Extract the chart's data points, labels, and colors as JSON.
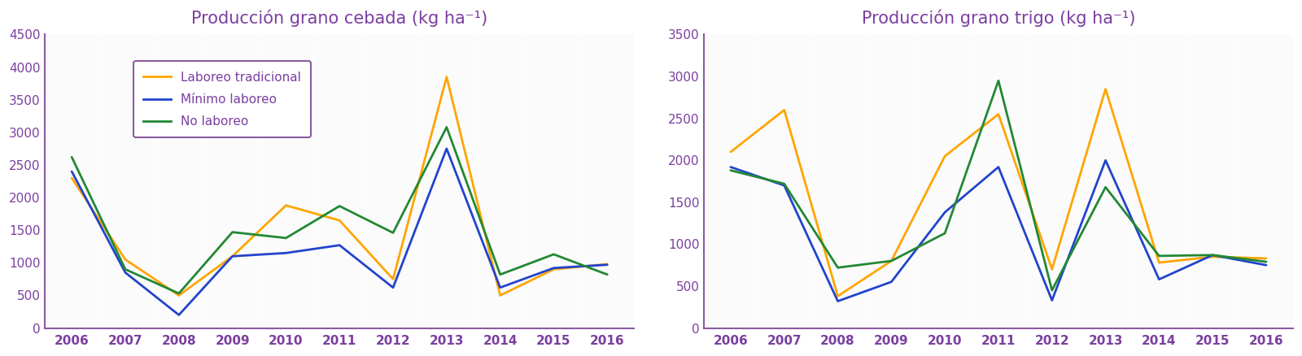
{
  "years": [
    2006,
    2007,
    2008,
    2009,
    2010,
    2011,
    2012,
    2013,
    2014,
    2015,
    2016
  ],
  "cebada": {
    "title": "Producción grano cebada (kg ha⁻¹)",
    "laboreo_tradicional": [
      2300,
      1050,
      500,
      1100,
      1880,
      1650,
      750,
      3850,
      500,
      900,
      980
    ],
    "minimo_laboreo": [
      2400,
      850,
      200,
      1100,
      1150,
      1270,
      620,
      2750,
      620,
      920,
      970
    ],
    "no_laboreo": [
      2620,
      900,
      530,
      1470,
      1380,
      1870,
      1460,
      3080,
      820,
      1130,
      820
    ],
    "ylim": [
      0,
      4500
    ],
    "yticks": [
      0,
      500,
      1000,
      1500,
      2000,
      2500,
      3000,
      3500,
      4000,
      4500
    ]
  },
  "trigo": {
    "title": "Producción grano trigo (kg ha⁻¹)",
    "laboreo_tradicional": [
      2100,
      2600,
      380,
      800,
      2050,
      2550,
      700,
      2850,
      780,
      850,
      830
    ],
    "minimo_laboreo": [
      1920,
      1700,
      320,
      550,
      1380,
      1920,
      330,
      2000,
      580,
      870,
      750
    ],
    "no_laboreo": [
      1880,
      1720,
      720,
      800,
      1130,
      2950,
      450,
      1680,
      860,
      870,
      790
    ],
    "ylim": [
      0,
      3500
    ],
    "yticks": [
      0,
      500,
      1000,
      1500,
      2000,
      2500,
      3000,
      3500
    ]
  },
  "colors": {
    "laboreo_tradicional": "#FFA500",
    "minimo_laboreo": "#2244CC",
    "no_laboreo": "#228833"
  },
  "legend_labels": [
    "Laboreo tradicional",
    "Mínimo laboreo",
    "No laboreo"
  ],
  "title_color": "#7B3FA0",
  "axis_color": "#8B5AA0",
  "tick_color": "#7B3FA0",
  "bg_color": "#FFFFFF",
  "plot_bg": "#F4F2F8",
  "stripe_color": "#FFFFFF",
  "stripe_alpha": 0.7,
  "line_width": 2.0,
  "title_fontsize": 15,
  "tick_fontsize": 11,
  "legend_fontsize": 11
}
